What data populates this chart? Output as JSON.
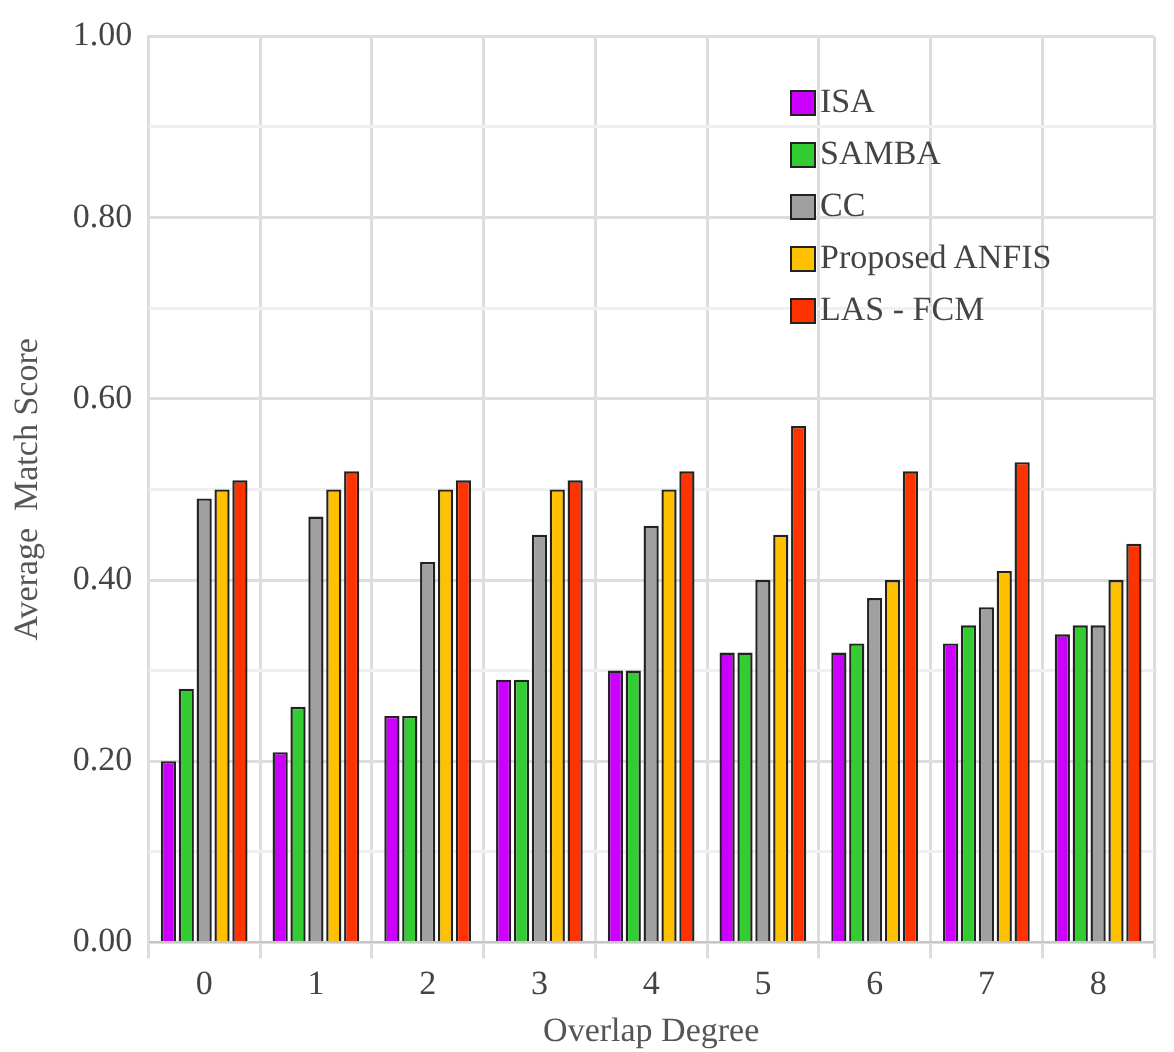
{
  "chart_data": {
    "type": "bar",
    "xlabel": "Overlap Degree",
    "ylabel": "Average  Match Score",
    "categories": [
      "0",
      "1",
      "2",
      "3",
      "4",
      "5",
      "6",
      "7",
      "8"
    ],
    "series": [
      {
        "name": "ISA",
        "color": "#cc00ff",
        "values": [
          0.2,
          0.21,
          0.25,
          0.29,
          0.3,
          0.32,
          0.32,
          0.33,
          0.34
        ]
      },
      {
        "name": "SAMBA",
        "color": "#33cc33",
        "values": [
          0.28,
          0.26,
          0.25,
          0.29,
          0.3,
          0.32,
          0.33,
          0.35,
          0.35
        ]
      },
      {
        "name": "CC",
        "color": "#a0a0a0",
        "values": [
          0.49,
          0.47,
          0.42,
          0.45,
          0.46,
          0.4,
          0.38,
          0.37,
          0.35
        ]
      },
      {
        "name": "Proposed ANFIS",
        "color": "#ffc000",
        "values": [
          0.5,
          0.5,
          0.5,
          0.5,
          0.5,
          0.45,
          0.4,
          0.41,
          0.4
        ]
      },
      {
        "name": "LAS - FCM",
        "color": "#ff3300",
        "values": [
          0.51,
          0.52,
          0.51,
          0.51,
          0.52,
          0.57,
          0.52,
          0.53,
          0.44
        ]
      }
    ],
    "ylim": [
      0,
      1
    ],
    "yticks": [
      {
        "value": 0,
        "label": "0.00"
      },
      {
        "value": 0.1,
        "label": null
      },
      {
        "value": 0.2,
        "label": "0.20"
      },
      {
        "value": 0.3,
        "label": null
      },
      {
        "value": 0.4,
        "label": "0.40"
      },
      {
        "value": 0.5,
        "label": null
      },
      {
        "value": 0.6,
        "label": "0.60"
      },
      {
        "value": 0.7,
        "label": null
      },
      {
        "value": 0.8,
        "label": "0.80"
      },
      {
        "value": 0.9,
        "label": null
      },
      {
        "value": 1,
        "label": "1.00"
      }
    ],
    "grid": true,
    "legend": "top right"
  }
}
